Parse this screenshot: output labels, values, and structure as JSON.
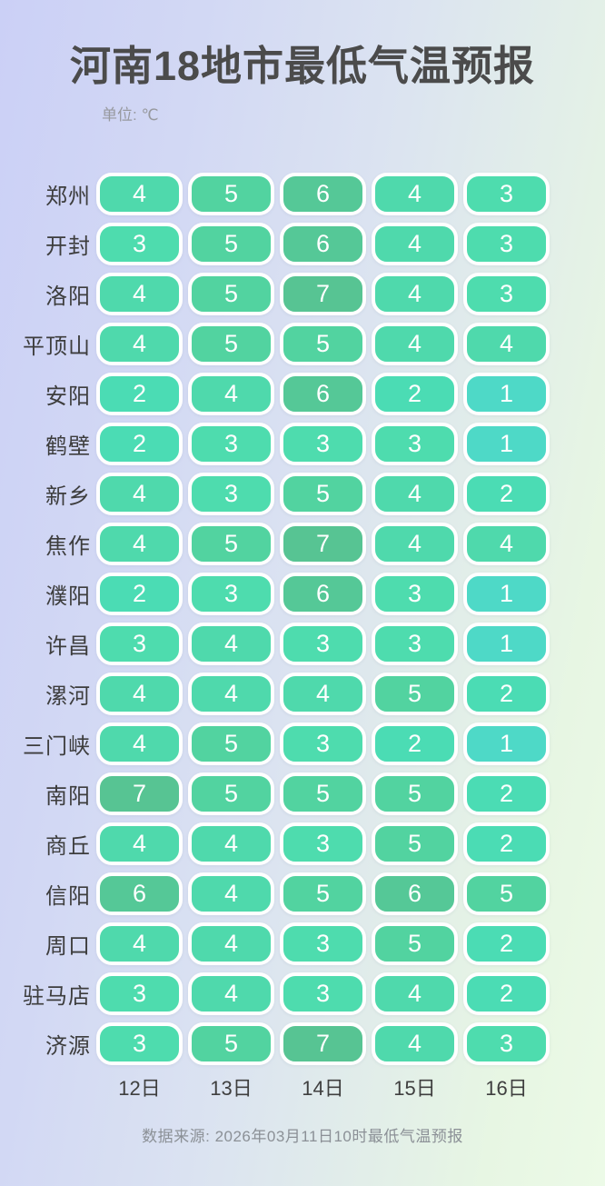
{
  "header": {
    "title": "河南18地市最低气温预报",
    "unit_label": "单位: ℃"
  },
  "footer": {
    "source": "数据来源: 2026年03月11日10时最低气温预报"
  },
  "chart_data": {
    "type": "heatmap",
    "title": "河南18地市最低气温预报",
    "unit": "℃",
    "categories": [
      "12日",
      "13日",
      "14日",
      "15日",
      "16日"
    ],
    "rows": [
      {
        "name": "郑州",
        "values": [
          4,
          5,
          6,
          4,
          3
        ]
      },
      {
        "name": "开封",
        "values": [
          3,
          5,
          6,
          4,
          3
        ]
      },
      {
        "name": "洛阳",
        "values": [
          4,
          5,
          7,
          4,
          3
        ]
      },
      {
        "name": "平顶山",
        "values": [
          4,
          5,
          5,
          4,
          4
        ]
      },
      {
        "name": "安阳",
        "values": [
          2,
          4,
          6,
          2,
          1
        ]
      },
      {
        "name": "鹤壁",
        "values": [
          2,
          3,
          3,
          3,
          1
        ]
      },
      {
        "name": "新乡",
        "values": [
          4,
          3,
          5,
          4,
          2
        ]
      },
      {
        "name": "焦作",
        "values": [
          4,
          5,
          7,
          4,
          4
        ]
      },
      {
        "name": "濮阳",
        "values": [
          2,
          3,
          6,
          3,
          1
        ]
      },
      {
        "name": "许昌",
        "values": [
          3,
          4,
          3,
          3,
          1
        ]
      },
      {
        "name": "漯河",
        "values": [
          4,
          4,
          4,
          5,
          2
        ]
      },
      {
        "name": "三门峡",
        "values": [
          4,
          5,
          3,
          2,
          1
        ]
      },
      {
        "name": "南阳",
        "values": [
          7,
          5,
          5,
          5,
          2
        ]
      },
      {
        "name": "商丘",
        "values": [
          4,
          4,
          3,
          5,
          2
        ]
      },
      {
        "name": "信阳",
        "values": [
          6,
          4,
          5,
          6,
          5
        ]
      },
      {
        "name": "周口",
        "values": [
          4,
          4,
          3,
          5,
          2
        ]
      },
      {
        "name": "驻马店",
        "values": [
          3,
          4,
          3,
          4,
          2
        ]
      },
      {
        "name": "济源",
        "values": [
          3,
          5,
          7,
          4,
          3
        ]
      }
    ],
    "color_scale": {
      "1": "#4ed9c7",
      "2": "#4bdcb4",
      "3": "#4edcae",
      "4": "#4fd9ac",
      "5": "#52d3a0",
      "6": "#55c897",
      "7": "#57c493"
    },
    "legend_position": "none",
    "grid": false,
    "source": "数据来源: 2026年03月11日10时最低气温预报"
  }
}
